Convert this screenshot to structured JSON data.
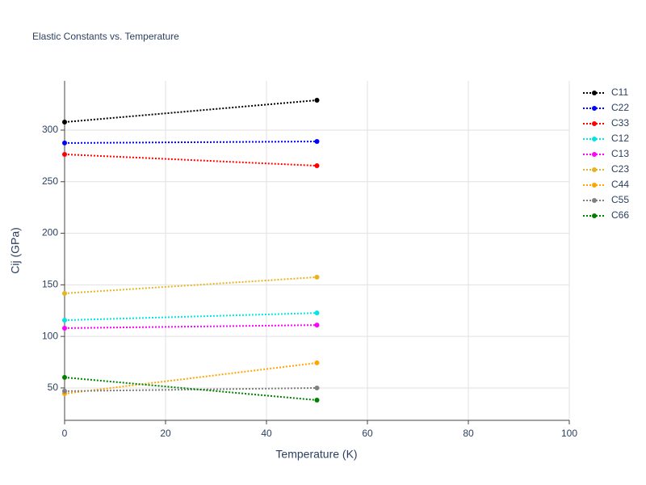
{
  "chart_data": {
    "type": "line",
    "title": "Elastic Constants vs. Temperature",
    "x_label": "Temperature (K)",
    "y_label": "Cij (GPa)",
    "x": [
      0,
      50
    ],
    "series": [
      {
        "name": "C11",
        "color": "#000000",
        "values": [
          307.8,
          329
        ]
      },
      {
        "name": "C22",
        "color": "#0000ff",
        "values": [
          287.5,
          289
        ]
      },
      {
        "name": "C33",
        "color": "#ff0000",
        "values": [
          276.5,
          265.5
        ]
      },
      {
        "name": "C12",
        "color": "#00e5e5",
        "values": [
          115.7,
          122.7
        ]
      },
      {
        "name": "C13",
        "color": "#ff00ff",
        "values": [
          108,
          111
        ]
      },
      {
        "name": "C23",
        "color": "#e6b422",
        "values": [
          141.7,
          157.4
        ]
      },
      {
        "name": "C44",
        "color": "#ffa500",
        "values": [
          44.5,
          74.3
        ]
      },
      {
        "name": "C55",
        "color": "#808080",
        "values": [
          46.9,
          50
        ]
      },
      {
        "name": "C66",
        "color": "#008000",
        "values": [
          60.2,
          38.2
        ]
      }
    ],
    "xlim": [
      0,
      100
    ],
    "xticks": [
      0,
      20,
      40,
      60,
      80,
      100
    ],
    "ylim": [
      18.6,
      347.8
    ],
    "yticks": [
      50,
      100,
      150,
      200,
      250,
      300
    ],
    "grid": true,
    "legend": "right"
  }
}
